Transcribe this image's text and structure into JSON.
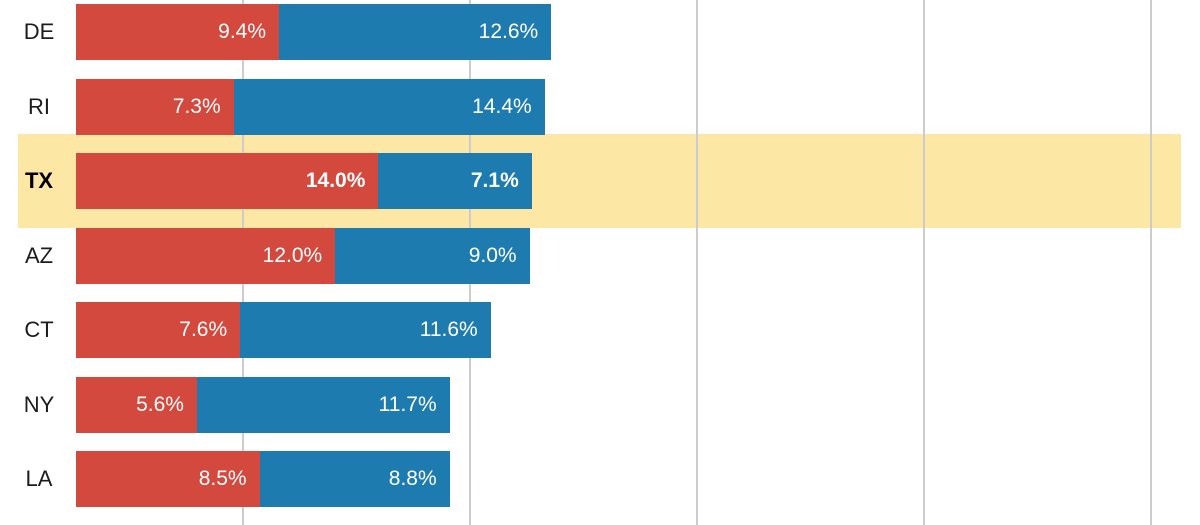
{
  "chart_data": {
    "type": "bar",
    "orientation": "horizontal-stacked",
    "title": "",
    "xlabel": "",
    "ylabel": "",
    "unit": "%",
    "grid": true,
    "legend": "none",
    "categories": [
      "DE",
      "RI",
      "TX",
      "AZ",
      "CT",
      "NY",
      "LA"
    ],
    "series": [
      {
        "name": "red-segment",
        "color": "#d4493e",
        "values": [
          9.4,
          7.3,
          14.0,
          12.0,
          7.6,
          5.6,
          8.5
        ],
        "value_labels": [
          "9.4%",
          "7.3%",
          "14.0%",
          "12.0%",
          "7.6%",
          "5.6%",
          "8.5%"
        ]
      },
      {
        "name": "blue-segment",
        "color": "#1e7bb0",
        "values": [
          12.6,
          14.4,
          7.1,
          9.0,
          11.6,
          11.7,
          8.8
        ],
        "value_labels": [
          "12.6%",
          "14.4%",
          "7.1%",
          "9.0%",
          "11.6%",
          "11.7%",
          "8.8%"
        ]
      }
    ],
    "highlighted_category": "TX",
    "highlight_color": "#fce7a4",
    "axis_ticks_visible": false
  },
  "colors": {
    "background": "#ffffff",
    "gridline": "#cccccc",
    "category_label": "#1c1c1c",
    "value_label": "#ffffff",
    "highlight_band": "#fce7a4"
  }
}
